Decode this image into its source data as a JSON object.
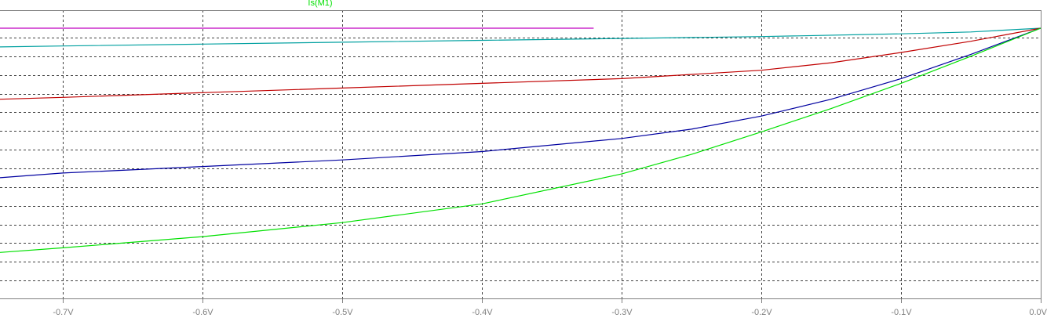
{
  "chart_data": {
    "type": "line",
    "title": "",
    "xlabel": "",
    "ylabel": "",
    "xlim": [
      -0.745,
      0.0
    ],
    "ylim": [
      0,
      14.5
    ],
    "grid": true,
    "x_ticks": [
      {
        "value": -0.7,
        "label": "-0.7V"
      },
      {
        "value": -0.6,
        "label": "-0.6V"
      },
      {
        "value": -0.5,
        "label": "-0.5V"
      },
      {
        "value": -0.4,
        "label": "-0.4V"
      },
      {
        "value": -0.3,
        "label": "-0.3V"
      },
      {
        "value": -0.2,
        "label": "-0.2V"
      },
      {
        "value": -0.1,
        "label": "-0.1V"
      },
      {
        "value": 0.0,
        "label": "0.0V"
      }
    ],
    "y_grid": [
      1,
      2,
      3,
      4,
      5,
      6,
      7,
      8,
      9,
      10,
      11,
      12,
      13,
      14
    ],
    "trace_label": {
      "text": "Is(M1)",
      "color": "#00e000"
    },
    "series": [
      {
        "color": "#c000c0",
        "x": [
          -0.745,
          -0.32
        ],
        "y": [
          14.5,
          14.5
        ]
      },
      {
        "color": "#00a0a0",
        "x": [
          -0.745,
          -0.7,
          -0.6,
          -0.5,
          -0.4,
          -0.3,
          -0.2,
          -0.1,
          -0.05,
          0.0
        ],
        "y": [
          13.5,
          13.55,
          13.65,
          13.75,
          13.85,
          13.95,
          14.05,
          14.2,
          14.3,
          14.5
        ]
      },
      {
        "color": "#c00000",
        "x": [
          -0.745,
          -0.7,
          -0.6,
          -0.5,
          -0.4,
          -0.3,
          -0.2,
          -0.15,
          -0.1,
          -0.05,
          0.0
        ],
        "y": [
          10.7,
          10.8,
          11.05,
          11.3,
          11.55,
          11.8,
          12.25,
          12.65,
          13.2,
          13.8,
          14.5
        ]
      },
      {
        "color": "#0000a0",
        "x": [
          -0.745,
          -0.7,
          -0.6,
          -0.5,
          -0.4,
          -0.3,
          -0.25,
          -0.2,
          -0.15,
          -0.1,
          -0.05,
          0.0
        ],
        "y": [
          6.5,
          6.75,
          7.1,
          7.45,
          7.9,
          8.6,
          9.1,
          9.8,
          10.7,
          11.8,
          13.1,
          14.5
        ]
      },
      {
        "color": "#00e000",
        "x": [
          -0.745,
          -0.7,
          -0.6,
          -0.5,
          -0.4,
          -0.3,
          -0.25,
          -0.2,
          -0.15,
          -0.1,
          -0.05,
          0.0
        ],
        "y": [
          2.5,
          2.75,
          3.35,
          4.1,
          5.1,
          6.7,
          7.75,
          8.95,
          10.2,
          11.55,
          13.0,
          14.5
        ]
      }
    ]
  }
}
